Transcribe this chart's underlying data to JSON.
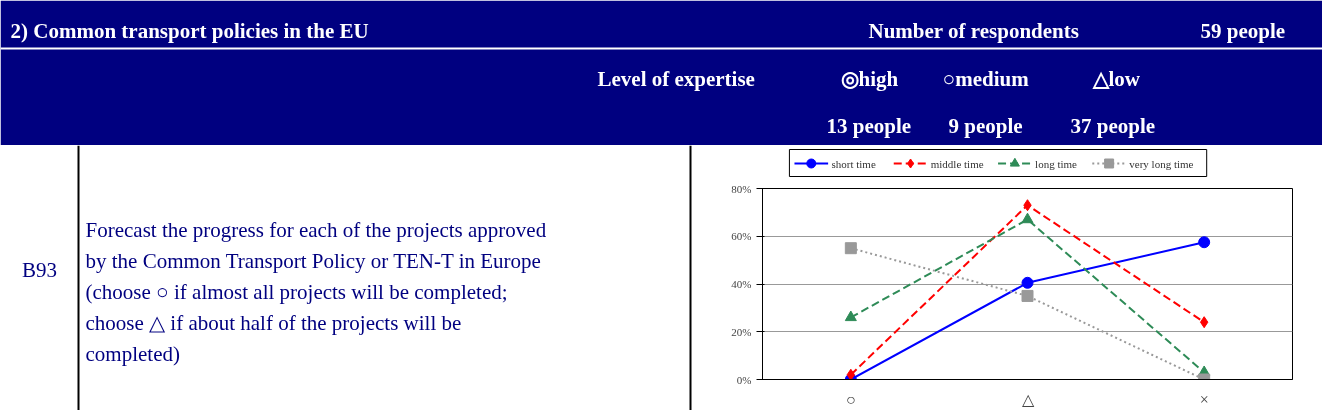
{
  "chart_data": {
    "type": "line",
    "title": "2) Common transport policies in the EU",
    "annotations": [
      "Number of respondents",
      "59 people",
      "Level of expertise",
      "◎high",
      "○medium",
      "△low",
      "13 people",
      "9 people",
      "37 people",
      "B93",
      "Forecast the progress for each of the projects approved by the Common Transport Policy or TEN-T in Europe (choose ○ if almost all projects will be completed; choose △ if about half of the projects will be completed)"
    ],
    "categories": [
      "○",
      "△",
      "×"
    ],
    "series": [
      {
        "name": "short time",
        "color": "#0000ff",
        "values": [
          0,
          40.5,
          57.5
        ],
        "marker": "circle",
        "line_style": "solid"
      },
      {
        "name": "middle time",
        "color": "#ff0000",
        "values": [
          2,
          73,
          24
        ],
        "marker": "diamond",
        "line_style": "dashed"
      },
      {
        "name": "long time",
        "color": "#2e8b57",
        "values": [
          26,
          67,
          3
        ],
        "marker": "triangle",
        "line_style": "dashed"
      },
      {
        "name": "very long time",
        "color": "#999999",
        "values": [
          55,
          35,
          0
        ],
        "marker": "square",
        "line_style": "dotted"
      }
    ],
    "ylim": [
      0,
      80
    ],
    "yticks": [
      {
        "value": 0,
        "label": "0%"
      },
      {
        "value": 20,
        "label": "20%"
      },
      {
        "value": 40,
        "label": "40%"
      },
      {
        "value": 60,
        "label": "60%"
      },
      {
        "value": 80,
        "label": "80%"
      }
    ],
    "grid": "y",
    "legend": "top"
  }
}
